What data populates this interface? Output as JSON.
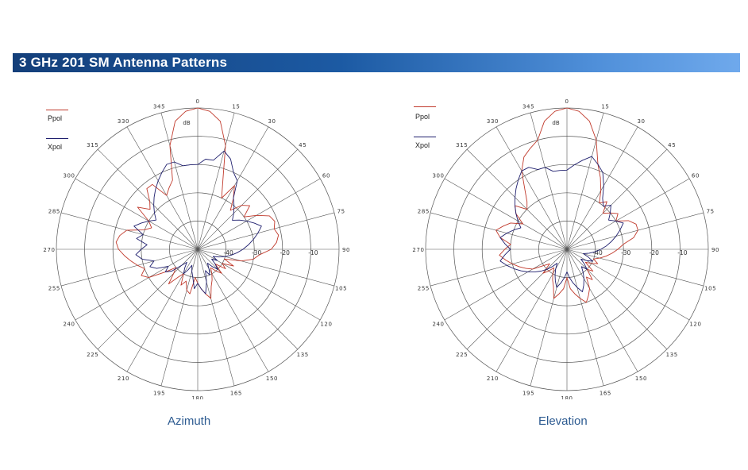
{
  "page": {
    "title": "3 GHz 201 SM Antenna Patterns"
  },
  "chart_data": [
    {
      "type": "polar",
      "caption": "Azimuth",
      "unit_label": "dB",
      "angle_labels": [
        "0",
        "15",
        "30",
        "45",
        "60",
        "75",
        "90",
        "105",
        "120",
        "135",
        "150",
        "165",
        "180",
        "195",
        "210",
        "225",
        "240",
        "255",
        "270",
        "285",
        "300",
        "315",
        "330",
        "345"
      ],
      "radial_labels": [
        "-40",
        "-30",
        "-20",
        "-10"
      ],
      "radial_range": [
        -50,
        0
      ],
      "grid": true,
      "legend": {
        "placement": "top-left",
        "entries": [
          {
            "name": "Ppol",
            "color": "#c0392b"
          },
          {
            "name": "Xpol",
            "color": "#1f1f6e"
          }
        ]
      },
      "series": [
        {
          "name": "Ppol",
          "color": "#c0392b",
          "angles": [
            0,
            5,
            10,
            15,
            20,
            25,
            30,
            35,
            40,
            45,
            50,
            55,
            60,
            65,
            70,
            75,
            80,
            85,
            90,
            95,
            100,
            105,
            110,
            115,
            120,
            125,
            130,
            135,
            140,
            145,
            150,
            155,
            160,
            165,
            170,
            175,
            180,
            185,
            190,
            195,
            200,
            205,
            210,
            215,
            220,
            225,
            230,
            235,
            240,
            245,
            250,
            255,
            260,
            265,
            270,
            275,
            280,
            285,
            290,
            295,
            300,
            305,
            310,
            315,
            320,
            325,
            330,
            335,
            340,
            345,
            350,
            355
          ],
          "values": [
            0,
            -1,
            -4,
            -12,
            -24,
            -30,
            -24,
            -28,
            -32,
            -28,
            -26,
            -30,
            -26,
            -22,
            -21,
            -22,
            -21,
            -22,
            -24,
            -28,
            -30,
            -34,
            -40,
            -36,
            -40,
            -38,
            -42,
            -38,
            -40,
            -42,
            -40,
            -38,
            -36,
            -32,
            -34,
            -36,
            -38,
            -40,
            -34,
            -35,
            -38,
            -36,
            -40,
            -38,
            -34,
            -38,
            -40,
            -36,
            -30,
            -28,
            -30,
            -28,
            -26,
            -24,
            -22,
            -21,
            -22,
            -24,
            -30,
            -32,
            -30,
            -24,
            -28,
            -26,
            -22,
            -22,
            -28,
            -26,
            -24,
            -12,
            -4,
            -1
          ]
        },
        {
          "name": "Xpol",
          "color": "#1f1f6e",
          "angles": [
            0,
            5,
            10,
            15,
            20,
            25,
            30,
            35,
            40,
            45,
            50,
            55,
            60,
            65,
            70,
            75,
            80,
            85,
            90,
            95,
            100,
            105,
            110,
            115,
            120,
            125,
            130,
            135,
            140,
            145,
            150,
            155,
            160,
            165,
            170,
            175,
            180,
            185,
            190,
            195,
            200,
            205,
            210,
            215,
            220,
            225,
            230,
            235,
            240,
            245,
            250,
            255,
            260,
            265,
            270,
            275,
            280,
            285,
            290,
            295,
            300,
            305,
            310,
            315,
            320,
            325,
            330,
            335,
            340,
            345,
            350,
            355
          ],
          "values": [
            -20,
            -18,
            -18,
            -14,
            -16,
            -20,
            -22,
            -28,
            -30,
            -32,
            -34,
            -32,
            -30,
            -28,
            -26,
            -28,
            -30,
            -32,
            -34,
            -36,
            -38,
            -40,
            -42,
            -44,
            -42,
            -44,
            -42,
            -40,
            -42,
            -44,
            -42,
            -40,
            -42,
            -38,
            -34,
            -36,
            -38,
            -36,
            -40,
            -42,
            -44,
            -42,
            -40,
            -42,
            -44,
            -42,
            -38,
            -36,
            -38,
            -34,
            -32,
            -34,
            -30,
            -28,
            -30,
            -32,
            -28,
            -30,
            -26,
            -28,
            -30,
            -32,
            -30,
            -28,
            -26,
            -24,
            -22,
            -20,
            -18,
            -18,
            -20,
            -20
          ]
        }
      ]
    },
    {
      "type": "polar",
      "caption": "Elevation",
      "unit_label": "dB",
      "angle_labels": [
        "0",
        "15",
        "30",
        "45",
        "60",
        "75",
        "90",
        "105",
        "120",
        "135",
        "150",
        "165",
        "180",
        "195",
        "210",
        "225",
        "240",
        "255",
        "270",
        "285",
        "300",
        "315",
        "330",
        "345"
      ],
      "radial_labels": [
        "-40",
        "-30",
        "-20",
        "-10"
      ],
      "radial_range": [
        -50,
        0
      ],
      "grid": true,
      "legend": {
        "placement": "top-left",
        "entries": [
          {
            "name": "Ppol",
            "color": "#c0392b"
          },
          {
            "name": "Xpol",
            "color": "#1f1f6e"
          }
        ]
      },
      "series": [
        {
          "name": "Ppol",
          "color": "#c0392b",
          "angles": [
            0,
            5,
            10,
            15,
            20,
            25,
            30,
            35,
            40,
            45,
            50,
            55,
            60,
            65,
            70,
            75,
            80,
            85,
            90,
            95,
            100,
            105,
            110,
            115,
            120,
            125,
            130,
            135,
            140,
            145,
            150,
            155,
            160,
            165,
            170,
            175,
            180,
            185,
            190,
            195,
            200,
            205,
            210,
            215,
            220,
            225,
            230,
            235,
            240,
            245,
            250,
            255,
            260,
            265,
            270,
            275,
            280,
            285,
            290,
            295,
            300,
            305,
            310,
            315,
            320,
            325,
            330,
            335,
            340,
            345,
            350,
            355
          ],
          "values": [
            0,
            -1,
            -4,
            -10,
            -18,
            -22,
            -26,
            -30,
            -28,
            -32,
            -30,
            -28,
            -30,
            -26,
            -24,
            -24,
            -26,
            -30,
            -32,
            -34,
            -36,
            -38,
            -40,
            -38,
            -40,
            -42,
            -38,
            -40,
            -36,
            -38,
            -34,
            -32,
            -30,
            -32,
            -34,
            -36,
            -40,
            -36,
            -34,
            -32,
            -36,
            -38,
            -40,
            -42,
            -40,
            -38,
            -42,
            -40,
            -36,
            -34,
            -32,
            -30,
            -28,
            -26,
            -28,
            -30,
            -26,
            -24,
            -26,
            -28,
            -32,
            -28,
            -26,
            -30,
            -28,
            -24,
            -18,
            -14,
            -12,
            -10,
            -4,
            -1
          ]
        },
        {
          "name": "Xpol",
          "color": "#1f1f6e",
          "angles": [
            0,
            5,
            10,
            15,
            20,
            25,
            30,
            35,
            40,
            45,
            50,
            55,
            60,
            65,
            70,
            75,
            80,
            85,
            90,
            95,
            100,
            105,
            110,
            115,
            120,
            125,
            130,
            135,
            140,
            145,
            150,
            155,
            160,
            165,
            170,
            175,
            180,
            185,
            190,
            195,
            200,
            205,
            210,
            215,
            220,
            225,
            230,
            235,
            240,
            245,
            250,
            255,
            260,
            265,
            270,
            275,
            280,
            285,
            290,
            295,
            300,
            305,
            310,
            315,
            320,
            325,
            330,
            335,
            340,
            345,
            350,
            355
          ],
          "values": [
            -22,
            -20,
            -18,
            -16,
            -18,
            -20,
            -24,
            -28,
            -30,
            -28,
            -30,
            -32,
            -30,
            -28,
            -30,
            -32,
            -34,
            -36,
            -38,
            -40,
            -42,
            -44,
            -42,
            -40,
            -42,
            -44,
            -42,
            -40,
            -42,
            -40,
            -38,
            -36,
            -34,
            -36,
            -38,
            -40,
            -42,
            -40,
            -38,
            -36,
            -38,
            -40,
            -42,
            -44,
            -42,
            -40,
            -38,
            -36,
            -34,
            -32,
            -30,
            -28,
            -26,
            -28,
            -30,
            -28,
            -26,
            -28,
            -30,
            -32,
            -30,
            -28,
            -26,
            -24,
            -22,
            -20,
            -18,
            -18,
            -20,
            -20,
            -22,
            -22
          ]
        }
      ]
    }
  ]
}
